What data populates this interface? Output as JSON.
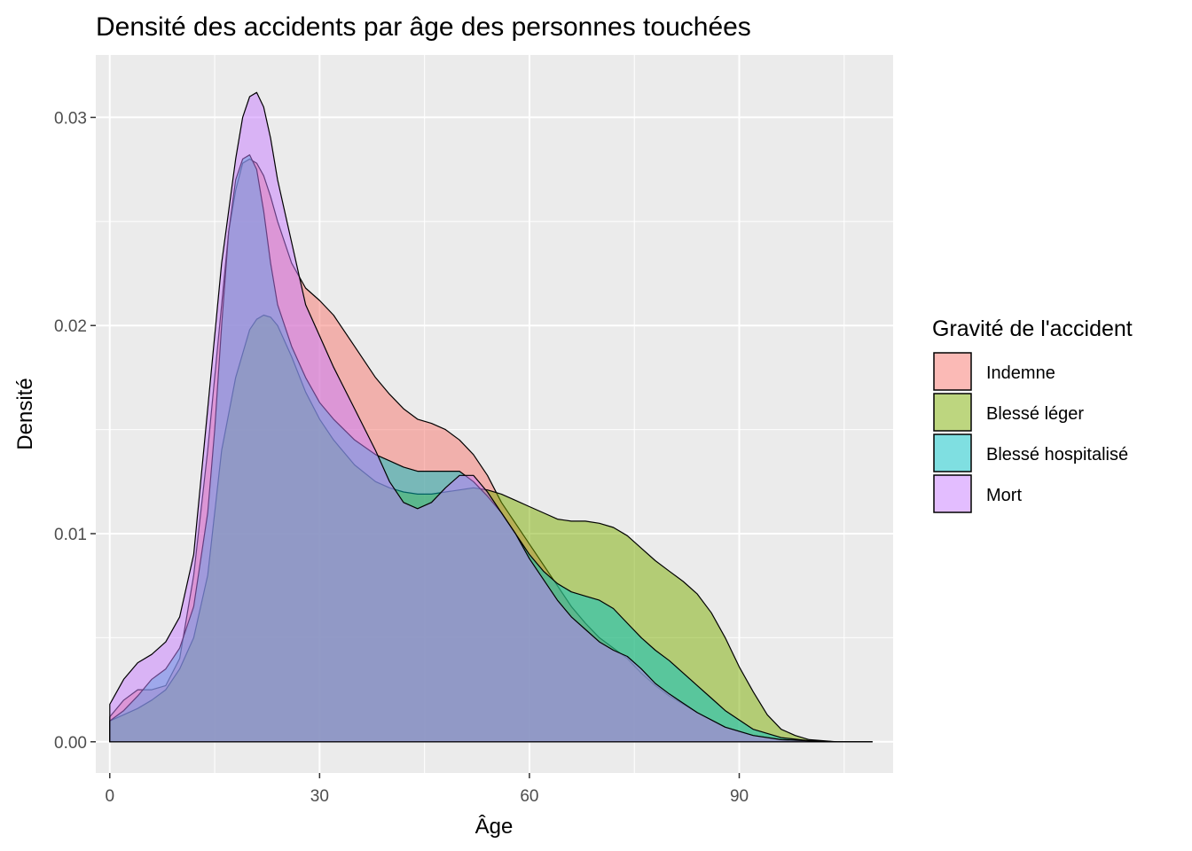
{
  "chart_data": {
    "type": "area",
    "title": "Densité des accidents par âge des personnes touchées",
    "xlabel": "Âge",
    "ylabel": "Densité",
    "xlim": [
      -2,
      112
    ],
    "ylim": [
      -0.0015,
      0.033
    ],
    "x_ticks": [
      0,
      30,
      60,
      90
    ],
    "x_tick_labels": [
      "0",
      "30",
      "60",
      "90"
    ],
    "y_ticks": [
      0.0,
      0.01,
      0.02,
      0.03
    ],
    "y_tick_labels": [
      "0.00",
      "0.01",
      "0.02",
      "0.03"
    ],
    "grid": true,
    "legend_title": "Gravité de l'accident",
    "legend_position": "right",
    "series": [
      {
        "name": "Indemne",
        "color": "#F8766D",
        "x": [
          0,
          2,
          4,
          6,
          8,
          10,
          12,
          14,
          16,
          17,
          18,
          19,
          20,
          21,
          22,
          23,
          24,
          26,
          28,
          30,
          32,
          35,
          38,
          40,
          42,
          44,
          46,
          48,
          50,
          52,
          54,
          56,
          58,
          60,
          62,
          64,
          66,
          68,
          70,
          72,
          74,
          76,
          78,
          80,
          84,
          88,
          92,
          96,
          100,
          104,
          109
        ],
        "values": [
          0.0012,
          0.002,
          0.0025,
          0.0025,
          0.0027,
          0.004,
          0.008,
          0.014,
          0.021,
          0.0245,
          0.0265,
          0.0278,
          0.028,
          0.0278,
          0.0272,
          0.0262,
          0.025,
          0.023,
          0.0218,
          0.0212,
          0.0205,
          0.019,
          0.0175,
          0.0167,
          0.016,
          0.0155,
          0.0153,
          0.015,
          0.0145,
          0.0138,
          0.0128,
          0.0115,
          0.0105,
          0.0095,
          0.0085,
          0.0075,
          0.0065,
          0.0057,
          0.005,
          0.0045,
          0.004,
          0.0033,
          0.0027,
          0.0022,
          0.0014,
          0.0007,
          0.0003,
          0.0001,
          5e-05,
          0.0,
          0.0
        ]
      },
      {
        "name": "Blessé léger",
        "color": "#7CAE00",
        "x": [
          0,
          2,
          4,
          6,
          8,
          10,
          12,
          14,
          16,
          18,
          20,
          21,
          22,
          23,
          24,
          26,
          28,
          30,
          32,
          35,
          38,
          40,
          42,
          44,
          46,
          48,
          50,
          52,
          54,
          56,
          58,
          60,
          62,
          64,
          66,
          68,
          70,
          72,
          74,
          76,
          78,
          80,
          82,
          84,
          86,
          88,
          90,
          92,
          94,
          96,
          98,
          100,
          104,
          109
        ],
        "values": [
          0.001,
          0.0013,
          0.0016,
          0.002,
          0.0025,
          0.0035,
          0.005,
          0.008,
          0.014,
          0.0175,
          0.0198,
          0.0203,
          0.0205,
          0.0204,
          0.02,
          0.0185,
          0.0168,
          0.0155,
          0.0145,
          0.0133,
          0.0125,
          0.0122,
          0.012,
          0.0119,
          0.0119,
          0.012,
          0.0121,
          0.0122,
          0.0121,
          0.0119,
          0.0116,
          0.0113,
          0.011,
          0.0107,
          0.0106,
          0.0106,
          0.0105,
          0.0103,
          0.0099,
          0.0093,
          0.0087,
          0.0082,
          0.0077,
          0.0071,
          0.0062,
          0.005,
          0.0036,
          0.0024,
          0.0013,
          0.0006,
          0.0003,
          0.0001,
          0.0,
          0.0
        ]
      },
      {
        "name": "Blessé hospitalisé",
        "color": "#00BFC4",
        "x": [
          0,
          2,
          4,
          6,
          8,
          10,
          12,
          14,
          15,
          16,
          17,
          18,
          19,
          20,
          21,
          22,
          23,
          24,
          26,
          28,
          30,
          32,
          35,
          38,
          40,
          42,
          44,
          46,
          48,
          50,
          52,
          54,
          56,
          58,
          60,
          62,
          64,
          66,
          68,
          70,
          72,
          74,
          76,
          78,
          80,
          82,
          84,
          86,
          88,
          92,
          96,
          100,
          104,
          109
        ],
        "values": [
          0.001,
          0.0015,
          0.0022,
          0.003,
          0.0035,
          0.0045,
          0.0065,
          0.011,
          0.015,
          0.02,
          0.0245,
          0.027,
          0.028,
          0.0282,
          0.0275,
          0.0255,
          0.023,
          0.021,
          0.019,
          0.0175,
          0.0163,
          0.0155,
          0.0145,
          0.0138,
          0.0135,
          0.0132,
          0.013,
          0.013,
          0.013,
          0.013,
          0.0125,
          0.0118,
          0.011,
          0.01,
          0.009,
          0.0082,
          0.0076,
          0.0072,
          0.007,
          0.0068,
          0.0064,
          0.0057,
          0.005,
          0.0044,
          0.0039,
          0.0033,
          0.0027,
          0.0021,
          0.0015,
          0.0006,
          0.0002,
          5e-05,
          0.0,
          0.0
        ]
      },
      {
        "name": "Mort",
        "color": "#C77CFF",
        "x": [
          0,
          2,
          4,
          6,
          8,
          10,
          12,
          14,
          16,
          18,
          19,
          20,
          21,
          22,
          23,
          24,
          26,
          28,
          30,
          32,
          35,
          38,
          40,
          42,
          44,
          46,
          48,
          50,
          52,
          54,
          56,
          58,
          60,
          62,
          64,
          66,
          68,
          70,
          72,
          74,
          76,
          78,
          80,
          84,
          88,
          92,
          96,
          100,
          104,
          109
        ],
        "values": [
          0.0018,
          0.003,
          0.0038,
          0.0042,
          0.0048,
          0.006,
          0.009,
          0.016,
          0.023,
          0.028,
          0.03,
          0.031,
          0.0312,
          0.0305,
          0.029,
          0.027,
          0.024,
          0.021,
          0.0195,
          0.018,
          0.016,
          0.014,
          0.0125,
          0.0115,
          0.0112,
          0.0115,
          0.0122,
          0.0128,
          0.0128,
          0.012,
          0.011,
          0.01,
          0.0088,
          0.0078,
          0.0068,
          0.006,
          0.0054,
          0.0048,
          0.0044,
          0.0041,
          0.0035,
          0.0028,
          0.0023,
          0.0014,
          0.0007,
          0.0003,
          0.0001,
          5e-05,
          0.0,
          0.0
        ]
      }
    ]
  }
}
